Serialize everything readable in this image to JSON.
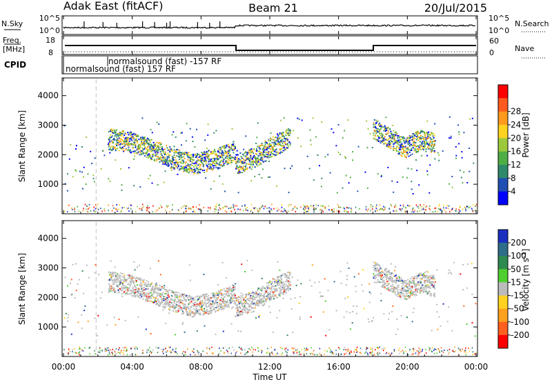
{
  "header": {
    "station": "Adak East (fitACF)",
    "beam": "Beam 21",
    "date": "20/Jul/2015"
  },
  "strip": {
    "nsky_label": "N.Sky",
    "nsearch_label": "N.Search",
    "freq_label_1": "Freq.",
    "freq_label_2": "[MHz]",
    "nave_label": "Nave",
    "cpid_label": "CPID",
    "noise_left_ticks": [
      "10^5",
      "10^0"
    ],
    "noise_right_ticks": [
      "10^5",
      "10^0"
    ],
    "freq_ticks": [
      "18",
      "8"
    ],
    "nave_ticks": [
      "60",
      "0"
    ],
    "cpid_entries": [
      {
        "text": "normalsound (fast) -157 RF",
        "start_hour": 3.1
      },
      {
        "text": "normalsound (fast) 157 RF",
        "start_hour": 0.1
      }
    ]
  },
  "time_ticks": [
    "00:00",
    "04:00",
    "08:00",
    "12:00",
    "16:00",
    "20:00",
    "00:00"
  ],
  "xlabel": "Time UT",
  "colors": {
    "axis": "#000000",
    "gap_line": "#cccccc",
    "ground_scatter": "#bbbbbb"
  },
  "chart_data": [
    {
      "type": "heatmap",
      "name": "power-panel",
      "ylabel": "Slant Range [km]",
      "xlim_hours": [
        0,
        24
      ],
      "ylim": [
        0,
        4600
      ],
      "y_ticks": [
        "1000",
        "2000",
        "3000",
        "4000"
      ],
      "colorbar": {
        "label": "Power [dB]",
        "ticks": [
          "4",
          "8",
          "12",
          "16",
          "20",
          "24",
          "28"
        ],
        "colors": [
          "#0000ff",
          "#1f4fb3",
          "#2f8a6c",
          "#4fae44",
          "#9cc93a",
          "#ffd21f",
          "#ff9a1f",
          "#ff5a1f",
          "#ff0000"
        ]
      },
      "features": [
        {
          "label": "main band",
          "start_hour": 2.6,
          "end_hour": 10.0,
          "range_km": [
            2550,
            2450,
            2200,
            1900,
            1700,
            1850,
            2150
          ]
        },
        {
          "label": "post-noon band",
          "start_hour": 10.0,
          "end_hour": 13.2,
          "range_km": [
            1700,
            1900,
            2300,
            2600
          ]
        },
        {
          "label": "evening band",
          "start_hour": 18.0,
          "end_hour": 21.6,
          "range_km": [
            2900,
            2600,
            2250,
            2500,
            2400
          ]
        }
      ]
    },
    {
      "type": "heatmap",
      "name": "velocity-panel",
      "ylabel": "Slant Range [km]",
      "xlim_hours": [
        0,
        24
      ],
      "ylim": [
        0,
        4600
      ],
      "y_ticks": [
        "1000",
        "2000",
        "3000",
        "4000"
      ],
      "colorbar": {
        "label": "Velocity [m s^-1]",
        "ticks": [
          "200",
          "100",
          "50",
          "15",
          "-15",
          "-50",
          "-100",
          "-200"
        ],
        "colors": [
          "#1a2fc0",
          "#2f6e8a",
          "#2f8a4f",
          "#4fcf2f",
          "#bbbbbb",
          "#ffd21f",
          "#ffa01f",
          "#ff601f",
          "#ff0000"
        ]
      }
    }
  ]
}
